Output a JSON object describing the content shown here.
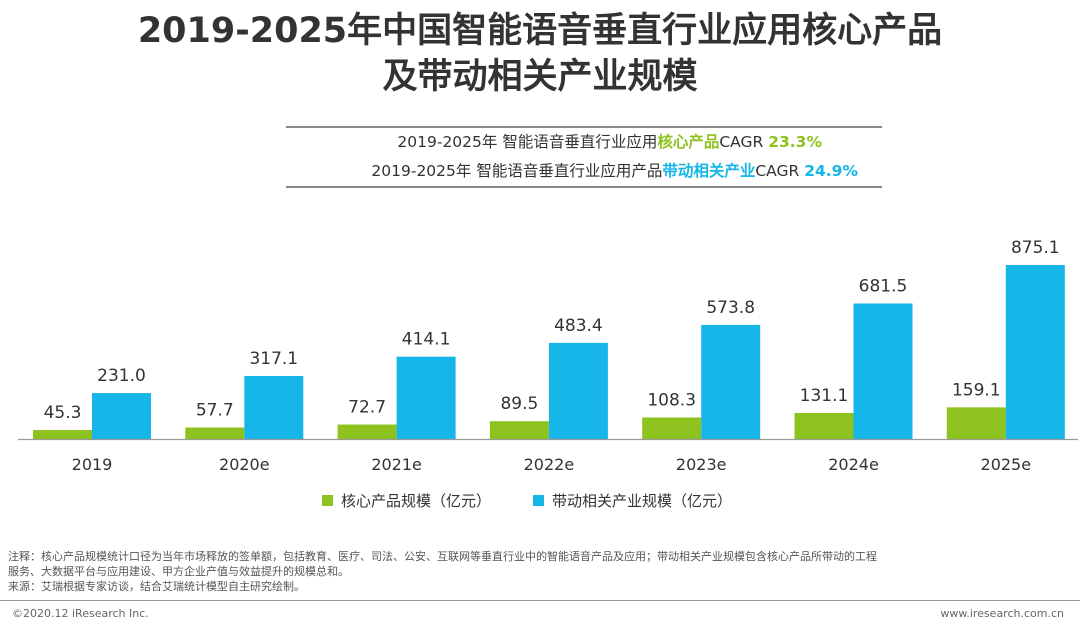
{
  "title_line1": "2019-2025年中国智能语音垂直行业应用核心产品",
  "title_line2": "及带动相关产业规模",
  "cagr": {
    "row1_prefix": "2019-2025年 智能语音垂直行业应用",
    "row1_highlight": "核心产品",
    "row1_mid": "CAGR ",
    "row1_pct": "23.3%",
    "row2_prefix": "2019-2025年 智能语音垂直行业应用产品",
    "row2_highlight": "带动相关产业",
    "row2_mid": "CAGR ",
    "row2_pct": "24.9%"
  },
  "chart_data": {
    "type": "bar",
    "categories": [
      "2019",
      "2020e",
      "2021e",
      "2022e",
      "2023e",
      "2024e",
      "2025e"
    ],
    "series": [
      {
        "name": "核心产品规模（亿元）",
        "color": "#8DC21F",
        "values": [
          45.3,
          57.7,
          72.7,
          89.5,
          108.3,
          131.1,
          159.1
        ],
        "labels": [
          "45.3",
          "57.7",
          "72.7",
          "89.5",
          "108.3",
          "131.1",
          "159.1"
        ]
      },
      {
        "name": "带动相关产业规模（亿元）",
        "color": "#16B6E8",
        "values": [
          231.0,
          317.1,
          414.1,
          483.4,
          573.8,
          681.5,
          875.1
        ],
        "labels": [
          "231.0",
          "317.1",
          "414.1",
          "483.4",
          "573.8",
          "681.5",
          "875.1"
        ]
      }
    ],
    "ylim": [
      0,
      875.1
    ]
  },
  "legend": {
    "item1": "核心产品规模（亿元）",
    "item2": "带动相关产业规模（亿元）"
  },
  "footnote": {
    "line1": "注释：核心产品规模统计口径为当年市场释放的签单额，包括教育、医疗、司法、公安、互联网等垂直行业中的智能语音产品及应用；带动相关产业规模包含核心产品所带动的工程",
    "line2": "服务、大数据平台与应用建设、甲方企业产值与效益提升的规模总和。",
    "line3": "来源：艾瑞根据专家访谈，结合艾瑞统计模型自主研究绘制。"
  },
  "copyright": "©2020.12 iResearch Inc.",
  "site": "www.iresearch.com.cn"
}
